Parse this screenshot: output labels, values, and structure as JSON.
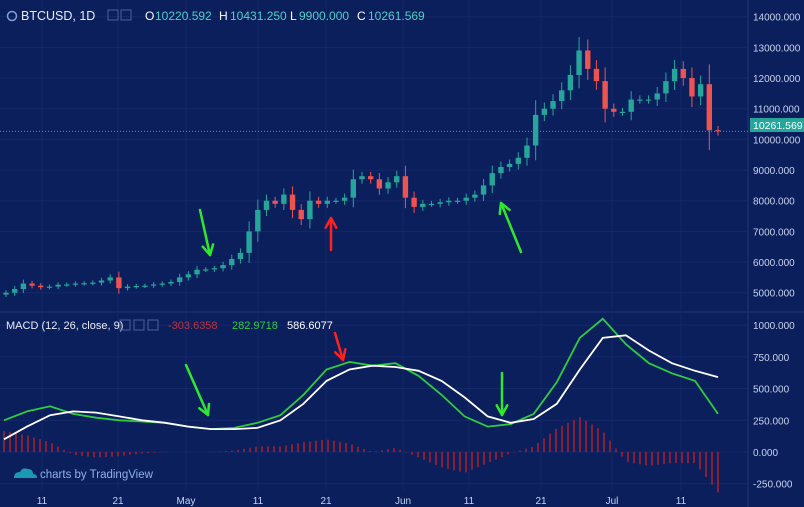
{
  "header": {
    "symbol": "BTCUSD, 1D",
    "open_label": "O",
    "open": "10220.592",
    "high_label": "H",
    "high": "10431.250",
    "low_label": "L",
    "low": "9900.000",
    "close_label": "C",
    "close": "10261.569"
  },
  "macd_header": {
    "title": "MACD (12, 26, close, 9)",
    "hist": "-303.6358",
    "macd": "282.9718",
    "signal": "586.6077"
  },
  "price_badge": "10261.569",
  "watermark": "charts by TradingView",
  "colors": {
    "background": "#0b1f5c",
    "up": "#26a69a",
    "down": "#ef5350",
    "macd_line": "#2ecc40",
    "signal_line": "#ffffff",
    "histogram": "#b0202a",
    "header_text": "#4dd0c8",
    "arrow_green": "#2ee82e",
    "arrow_red": "#ff2020"
  },
  "chart_data": [
    {
      "type": "candlestick",
      "title": "BTCUSD, 1D",
      "y_ticks": [
        "14000.000",
        "13000.000",
        "12000.000",
        "11000.000",
        "10000.000",
        "9000.000",
        "8000.000",
        "7000.000",
        "6000.000",
        "5000.000"
      ],
      "ylim": [
        4600,
        14350
      ],
      "x_ticks": [
        "11",
        "21",
        "May",
        "11",
        "21",
        "Jun",
        "11",
        "21",
        "Jul",
        "11"
      ],
      "close": [
        5000,
        5120,
        5300,
        5230,
        5180,
        5200,
        5260,
        5270,
        5300,
        5310,
        5330,
        5400,
        5500,
        5150,
        5200,
        5220,
        5230,
        5270,
        5300,
        5350,
        5500,
        5600,
        5750,
        5760,
        5800,
        5900,
        6100,
        6300,
        7000,
        7700,
        8000,
        7900,
        8200,
        7700,
        7400,
        8000,
        7900,
        8000,
        8000,
        8100,
        8700,
        8800,
        8700,
        8400,
        8600,
        8800,
        8100,
        7800,
        7900,
        7900,
        7950,
        8000,
        8000,
        8100,
        8200,
        8500,
        8900,
        9100,
        9200,
        9400,
        9800,
        10800,
        11000,
        11250,
        11600,
        12100,
        12900,
        12300,
        11900,
        11000,
        10900,
        10900,
        11300,
        11300,
        11300,
        11500,
        11900,
        12300,
        12000,
        11400,
        11800,
        10300,
        10261.569
      ],
      "annotations": [
        {
          "type": "arrow-down",
          "color": "green",
          "date_index": 25
        },
        {
          "type": "arrow-up",
          "color": "red",
          "date_index": 40
        },
        {
          "type": "arrow-up",
          "color": "green",
          "date_index": 61
        }
      ]
    },
    {
      "type": "line",
      "title": "MACD (12, 26, close, 9)",
      "y_ticks": [
        "1000.000",
        "750.000",
        "500.000",
        "250.000",
        "0.000",
        "-250.000"
      ],
      "ylim": [
        -300,
        1080
      ],
      "series": [
        {
          "name": "MACD",
          "values": [
            250,
            320,
            360,
            300,
            270,
            250,
            240,
            230,
            200,
            180,
            190,
            230,
            290,
            450,
            650,
            710,
            680,
            700,
            600,
            450,
            280,
            200,
            220,
            300,
            550,
            900,
            1050,
            850,
            700,
            620,
            560,
            300
          ]
        },
        {
          "name": "Signal",
          "values": [
            100,
            200,
            290,
            320,
            310,
            280,
            250,
            230,
            200,
            180,
            180,
            190,
            250,
            380,
            560,
            650,
            680,
            670,
            640,
            560,
            430,
            280,
            230,
            260,
            380,
            650,
            900,
            920,
            800,
            700,
            640,
            590
          ]
        }
      ],
      "annotations": [
        {
          "type": "arrow-down",
          "color": "green"
        },
        {
          "type": "arrow-down",
          "color": "red"
        },
        {
          "type": "arrow-down",
          "color": "green"
        }
      ]
    }
  ]
}
